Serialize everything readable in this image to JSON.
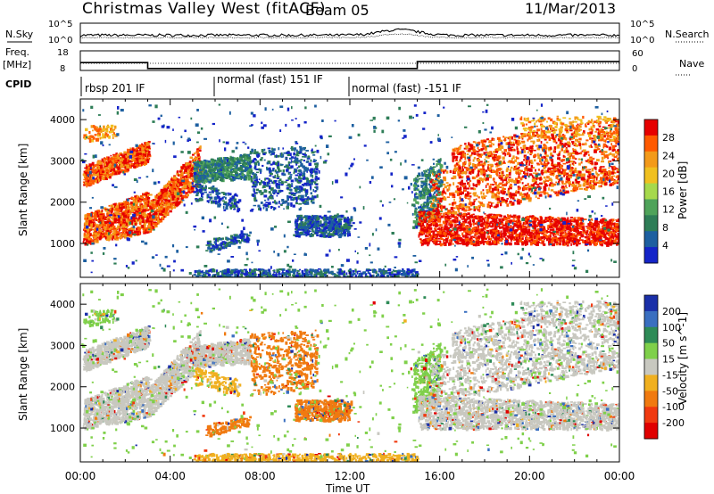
{
  "header": {
    "radar": "Christmas Valley West (fitACF)",
    "beam": "Beam 05",
    "date": "11/Mar/2013"
  },
  "side_labels": {
    "nsky": "N.Sky",
    "nsearch": "N.Search",
    "freq": "Freq.",
    "freq_unit": "[MHz]",
    "nave": "Nave",
    "cpid": "CPID"
  },
  "noise_axis": {
    "left_top": "10^5",
    "left_bottom": "10^0",
    "right_top": "10^5",
    "right_bottom": "10^0"
  },
  "freq_axis": {
    "left_top": "18",
    "left_bottom": "8",
    "right_top": "60",
    "right_bottom": "0"
  },
  "cpid_segments": [
    {
      "label": "rbsp 201 IF",
      "start_h": 0,
      "end_h": 6
    },
    {
      "label": "normal (fast) 151 IF",
      "start_h": 6,
      "end_h": 11
    },
    {
      "label": "normal (fast) -151 IF",
      "start_h": 11,
      "end_h": 24
    }
  ],
  "x_axis": {
    "label": "Time UT",
    "ticks": [
      "00:00",
      "04:00",
      "08:00",
      "12:00",
      "16:00",
      "20:00",
      "00:00"
    ]
  },
  "y_axis": {
    "label": "Slant Range [km]",
    "ticks": [
      "1000",
      "2000",
      "3000",
      "4000"
    ]
  },
  "power_colorbar": {
    "label": "Power [dB]",
    "ticks": [
      "28",
      "24",
      "20",
      "16",
      "12",
      "8",
      "4"
    ],
    "colors": [
      "#e60000",
      "#ff5a00",
      "#f39a1a",
      "#f0c020",
      "#a6d94c",
      "#4fa35a",
      "#2e7d57",
      "#1d5fa0",
      "#1424c8"
    ]
  },
  "velocity_colorbar": {
    "label": "Velocity [m s^-1]",
    "ticks": [
      "200",
      "100",
      "50",
      "15",
      "-15",
      "-50",
      "-100",
      "-200"
    ],
    "colors": [
      "#1a2fa8",
      "#3a6fc0",
      "#2e8b57",
      "#7fd04a",
      "#c8c8c0",
      "#f0b020",
      "#f07a10",
      "#f03a10",
      "#e00000"
    ]
  },
  "chart_data": {
    "type": "heatmap",
    "x_range_hours": [
      0,
      24
    ],
    "y_range_km": [
      180,
      4500
    ],
    "frequency_MHz_by_time": [
      {
        "start_h": 0,
        "end_h": 3,
        "value": 12
      },
      {
        "start_h": 3,
        "end_h": 15,
        "value": 9
      },
      {
        "start_h": 15,
        "end_h": 24,
        "value": 12.5
      }
    ],
    "power_features": [
      {
        "name": "",
        "start_h": 0.2,
        "end_h": 3.0,
        "range_km": [
          1000,
          3500
        ],
        "dB": 28
      },
      {
        "name": "",
        "start_h": 3.0,
        "end_h": 5.2,
        "range_km": [
          1200,
          3400
        ],
        "dB": 28
      },
      {
        "name": "",
        "start_h": 5.0,
        "end_h": 7.6,
        "range_km": [
          2400,
          3200
        ],
        "dB": 12
      },
      {
        "name": "",
        "start_h": 9.5,
        "end_h": 12.0,
        "range_km": [
          1200,
          1800
        ],
        "dB": 8
      },
      {
        "name": "",
        "start_h": 15.0,
        "end_h": 24.0,
        "range_km": [
          1000,
          2800
        ],
        "dB": 28
      },
      {
        "name": "",
        "start_h": 16.5,
        "end_h": 24.0,
        "range_km": [
          2500,
          4200
        ],
        "dB": 28
      }
    ]
  }
}
